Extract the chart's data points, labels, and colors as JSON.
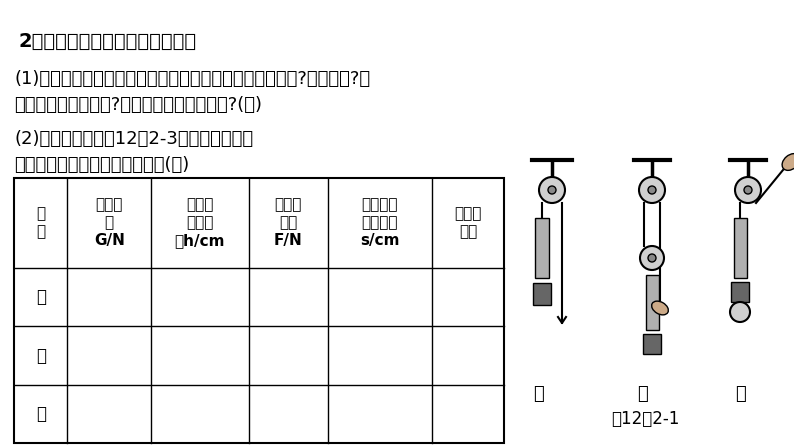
{
  "background_color": "#ffffff",
  "text_color": "#000000",
  "title_line": "2．探究定滑轮和动滑轮的特点。",
  "para1a": "(1)讨论：分别用定滑轮和动滑轮拉升同一物体时，谁省力?谁省距离?使",
  "para1b": "用定滑轮有什么好处?使用动滑轮有什么好处?(略)",
  "para2a": "(2)实验：按课本图12．2-3所示进行实验，",
  "para2b": "把实验数据记录在下面表格中。(略)",
  "header_col1": "实\n验",
  "header_col2": "物体重\n力\nG/N",
  "header_col3": "物体升\n高的高\n度h/cm",
  "header_col4": "弹簧秤\n示数\nF/N",
  "header_col5": "弹簧秤移\n动的距离\ns/cm",
  "header_col6": "用力的\n方向",
  "row_labels": [
    "甲",
    "乙",
    "丙"
  ],
  "fig_labels": [
    "甲",
    "乙",
    "丙"
  ],
  "fig_caption": "图12．2-1",
  "font_size_title": 14,
  "font_size_body": 13,
  "font_size_table_header": 11,
  "font_size_table_row": 12,
  "font_size_caption": 12
}
